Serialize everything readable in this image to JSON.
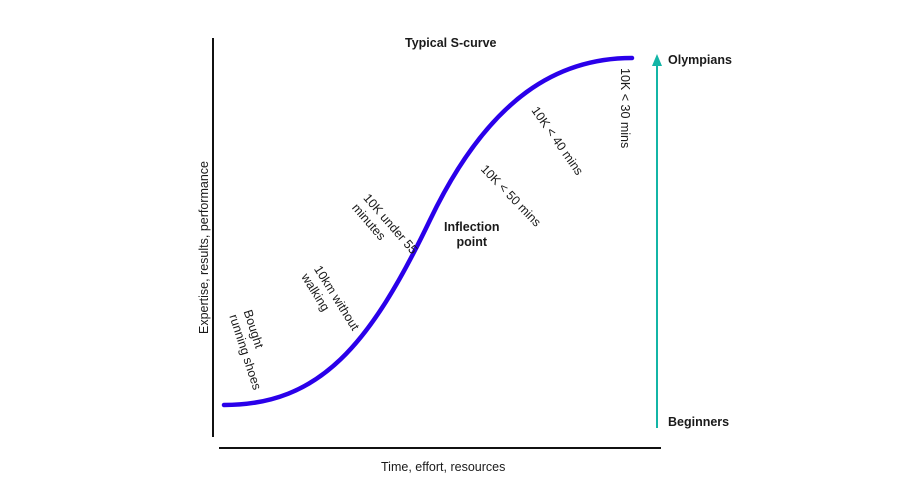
{
  "title": "Typical S-curve",
  "y_axis_label": "Expertise, results, performance",
  "x_axis_label": "Time, effort, resources",
  "scale": {
    "top": "Olympians",
    "bottom": "Beginners"
  },
  "inflection_label": "Inflection\npoint",
  "milestones": [
    {
      "text": "Bought\nrunning shoes"
    },
    {
      "text": "10km without\nwalking"
    },
    {
      "text": "10K under 55\nminutes"
    },
    {
      "text": "10K < 50 mins"
    },
    {
      "text": "10K < 40 mins"
    },
    {
      "text": "10K < 30 mins"
    }
  ],
  "colors": {
    "curve": "#2a00ea",
    "arrow": "#13b5a6",
    "axis": "#111111"
  }
}
